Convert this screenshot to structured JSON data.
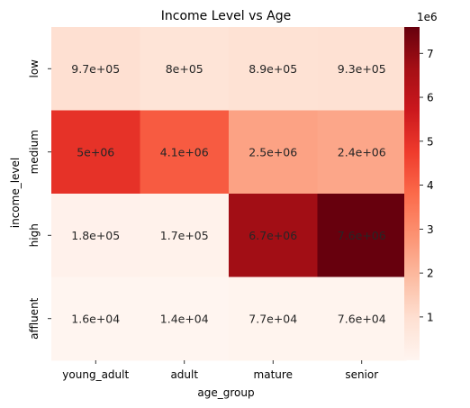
{
  "chart_data": {
    "type": "heatmap",
    "title": "Income Level vs Age",
    "xlabel": "age_group",
    "ylabel": "income_level",
    "x_categories": [
      "young_adult",
      "adult",
      "mature",
      "senior"
    ],
    "y_categories": [
      "low",
      "medium",
      "high",
      "affluent"
    ],
    "values": [
      [
        970000,
        800000,
        890000,
        930000
      ],
      [
        5000000,
        4100000,
        2500000,
        2400000
      ],
      [
        180000,
        170000,
        6700000,
        7600000
      ],
      [
        16000,
        14000,
        77000,
        76000
      ]
    ],
    "cell_labels": [
      [
        "9.7e+05",
        "8e+05",
        "8.9e+05",
        "9.3e+05"
      ],
      [
        "5e+06",
        "4.1e+06",
        "2.5e+06",
        "2.4e+06"
      ],
      [
        "1.8e+05",
        "1.7e+05",
        "6.7e+06",
        "7.6e+06"
      ],
      [
        "1.6e+04",
        "1.4e+04",
        "7.7e+04",
        "7.6e+04"
      ]
    ],
    "colormap": "Reds",
    "colorbar": {
      "range": [
        14000,
        7600000
      ],
      "ticks": [
        1,
        2,
        3,
        4,
        5,
        6,
        7
      ],
      "multiplier_label": "1e6"
    },
    "grid": false,
    "legend": "colorbar-right"
  }
}
